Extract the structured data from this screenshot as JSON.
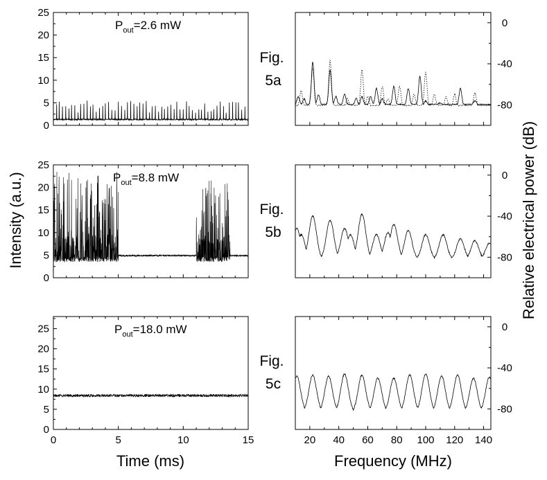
{
  "figure": {
    "y_label_left": "Intensity (a.u.)",
    "y_label_right": "Relative electrical power (dB)",
    "x_label_left": "Time (ms)",
    "x_label_right": "Frequency (MHz)"
  },
  "panels": [
    {
      "fig_line1": "Fig.",
      "fig_line2": "5a",
      "power_label": "P",
      "power_sub": "out",
      "power_value": "=2.6 mW"
    },
    {
      "fig_line1": "Fig.",
      "fig_line2": "5b",
      "power_label": "P",
      "power_sub": "out",
      "power_value": "=8.8 mW"
    },
    {
      "fig_line1": "Fig.",
      "fig_line2": "5c",
      "power_label": "P",
      "power_sub": "out",
      "power_value": "=18.0 mW"
    }
  ],
  "chart_data": [
    {
      "type": "line",
      "panel": "time-a",
      "title": "",
      "xlabel": "Time (ms)",
      "ylabel": "Intensity (a.u.)",
      "xlim": [
        0,
        15
      ],
      "ylim": [
        0,
        25
      ],
      "yticks": [
        0,
        5,
        10,
        15,
        20,
        25
      ],
      "xticks": [
        0,
        5,
        10,
        15
      ],
      "baseline": 1.3,
      "noise": 0.3,
      "spikes": [
        0.25,
        0.45,
        0.7,
        0.95,
        1.2,
        1.4,
        1.65,
        1.9,
        2.1,
        2.35,
        2.6,
        2.85,
        3.05,
        3.3,
        3.55,
        3.8,
        4.0,
        4.25,
        4.5,
        4.75,
        5.0,
        5.25,
        5.5,
        5.7,
        5.95,
        6.2,
        6.45,
        6.65,
        6.9,
        7.15,
        7.4,
        7.6,
        7.85,
        8.1,
        8.35,
        8.55,
        8.8,
        9.05,
        9.3,
        9.5,
        9.75,
        10.0,
        10.25,
        10.45,
        10.7,
        10.95,
        11.2,
        11.4,
        11.65,
        11.9,
        12.15,
        12.35,
        12.6,
        12.85,
        13.1,
        13.3,
        13.55,
        13.8,
        14.05,
        14.25,
        14.5,
        14.75
      ],
      "spike_height": [
        1.5,
        4.2
      ]
    },
    {
      "type": "line",
      "panel": "spectrum-a",
      "title": "",
      "xlabel": "Frequency (MHz)",
      "ylabel": "Relative electrical power (dB)",
      "xlim": [
        10,
        145
      ],
      "ylim": [
        -100,
        10
      ],
      "yticks": [
        0,
        -40,
        -80
      ],
      "xticks": [
        20,
        40,
        60,
        80,
        100,
        120,
        140
      ],
      "series": [
        {
          "name": "solid",
          "style": "solid",
          "floor": -80,
          "peaks": [
            [
              12,
              -72
            ],
            [
              16,
              -74
            ],
            [
              22,
              -38
            ],
            [
              26,
              -70
            ],
            [
              34,
              -46
            ],
            [
              38,
              -72
            ],
            [
              44,
              -70
            ],
            [
              52,
              -74
            ],
            [
              56,
              -72
            ],
            [
              62,
              -72
            ],
            [
              66,
              -64
            ],
            [
              70,
              -74
            ],
            [
              78,
              -62
            ],
            [
              88,
              -64
            ],
            [
              96,
              -52
            ],
            [
              100,
              -76
            ],
            [
              110,
              -78
            ],
            [
              124,
              -64
            ],
            [
              134,
              -76
            ]
          ]
        },
        {
          "name": "dotted",
          "style": "dotted",
          "floor": -81,
          "peaks": [
            [
              14,
              -66
            ],
            [
              22,
              -44
            ],
            [
              34,
              -36
            ],
            [
              46,
              -74
            ],
            [
              56,
              -46
            ],
            [
              60,
              -72
            ],
            [
              70,
              -62
            ],
            [
              74,
              -74
            ],
            [
              82,
              -62
            ],
            [
              92,
              -70
            ],
            [
              100,
              -48
            ],
            [
              106,
              -70
            ],
            [
              114,
              -72
            ],
            [
              120,
              -70
            ],
            [
              134,
              -68
            ]
          ]
        }
      ]
    },
    {
      "type": "line",
      "panel": "time-b",
      "title": "",
      "xlabel": "Time (ms)",
      "ylabel": "Intensity (a.u.)",
      "xlim": [
        0,
        15
      ],
      "ylim": [
        0,
        25
      ],
      "yticks": [
        0,
        5,
        10,
        15,
        20,
        25
      ],
      "xticks": [
        0,
        5,
        10,
        15
      ],
      "segments": [
        {
          "from": 0.0,
          "to": 5.0,
          "type": "bursting",
          "base": 3.5,
          "max": 23.5
        },
        {
          "from": 5.0,
          "to": 11.0,
          "type": "steady",
          "level": 4.9
        },
        {
          "from": 11.0,
          "to": 13.6,
          "type": "bursting",
          "base": 3.5,
          "max": 21.5
        },
        {
          "from": 13.6,
          "to": 15.0,
          "type": "steady",
          "level": 4.9
        }
      ]
    },
    {
      "type": "line",
      "panel": "spectrum-b",
      "title": "",
      "xlabel": "Frequency (MHz)",
      "ylabel": "Relative electrical power (dB)",
      "xlim": [
        10,
        145
      ],
      "ylim": [
        -100,
        10
      ],
      "yticks": [
        0,
        -40,
        -80
      ],
      "xticks": [
        20,
        40,
        60,
        80,
        100,
        120,
        140
      ],
      "series": [
        {
          "name": "spectrum",
          "style": "solid",
          "floor": -82,
          "peaks": [
            [
              11,
              -52
            ],
            [
              14,
              -58
            ],
            [
              22,
              -40
            ],
            [
              34,
              -44
            ],
            [
              44,
              -52
            ],
            [
              48,
              -58
            ],
            [
              56,
              -38
            ],
            [
              66,
              -58
            ],
            [
              74,
              -56
            ],
            [
              78,
              -48
            ],
            [
              88,
              -54
            ],
            [
              100,
              -58
            ],
            [
              112,
              -58
            ],
            [
              124,
              -62
            ],
            [
              134,
              -64
            ],
            [
              144,
              -66
            ]
          ]
        }
      ]
    },
    {
      "type": "line",
      "panel": "time-c",
      "title": "",
      "xlabel": "Time (ms)",
      "ylabel": "Intensity (a.u.)",
      "xlim": [
        0,
        15
      ],
      "ylim": [
        0,
        28
      ],
      "yticks": [
        0,
        5,
        10,
        15,
        20,
        25
      ],
      "xticks": [
        0,
        5,
        10,
        15
      ],
      "level": 8.4,
      "noise": 0.35
    },
    {
      "type": "line",
      "panel": "spectrum-c",
      "title": "",
      "xlabel": "Frequency (MHz)",
      "ylabel": "Relative electrical power (dB)",
      "xlim": [
        10,
        145
      ],
      "ylim": [
        -100,
        10
      ],
      "yticks": [
        0,
        -40,
        -80
      ],
      "xticks": [
        20,
        40,
        60,
        80,
        100,
        120,
        140
      ],
      "series": [
        {
          "name": "spectrum",
          "style": "solid",
          "floor": -83,
          "peaks": [
            [
              11,
              -48
            ],
            [
              22,
              -47
            ],
            [
              33,
              -48
            ],
            [
              44,
              -46
            ],
            [
              56,
              -47
            ],
            [
              67,
              -50
            ],
            [
              78,
              -50
            ],
            [
              89,
              -47
            ],
            [
              100,
              -46
            ],
            [
              111,
              -48
            ],
            [
              122,
              -47
            ],
            [
              133,
              -50
            ],
            [
              144,
              -49
            ]
          ]
        }
      ]
    }
  ]
}
